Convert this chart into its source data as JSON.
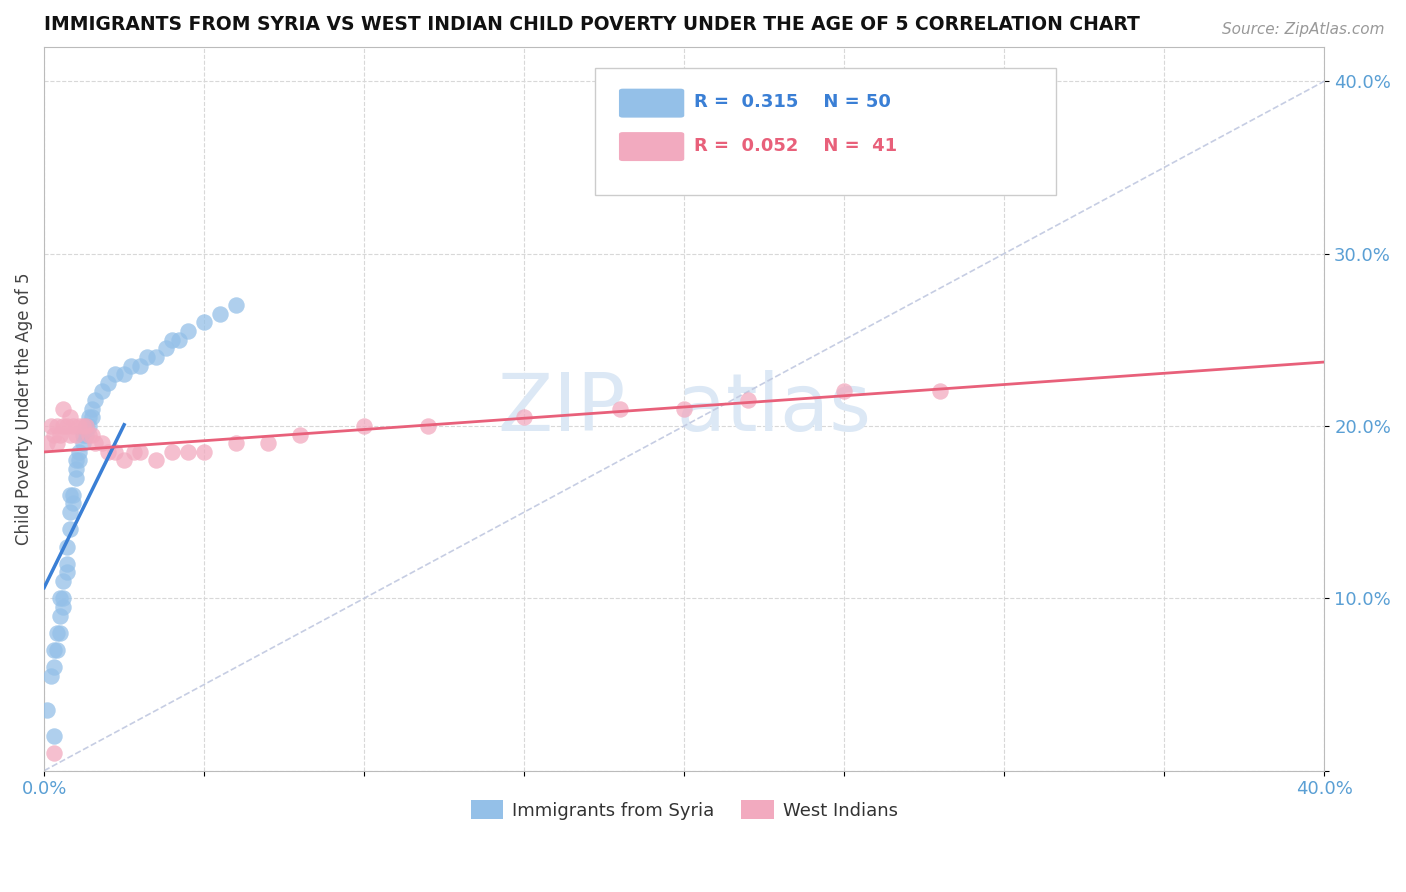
{
  "title": "IMMIGRANTS FROM SYRIA VS WEST INDIAN CHILD POVERTY UNDER THE AGE OF 5 CORRELATION CHART",
  "source": "Source: ZipAtlas.com",
  "ylabel": "Child Poverty Under the Age of 5",
  "xlim": [
    0.0,
    0.4
  ],
  "ylim": [
    0.0,
    0.42
  ],
  "legend_blue_label": "Immigrants from Syria",
  "legend_pink_label": "West Indians",
  "r_blue": 0.315,
  "n_blue": 50,
  "r_pink": 0.052,
  "n_pink": 41,
  "blue_color": "#94c0e8",
  "pink_color": "#f2aabf",
  "blue_line_color": "#3a7fd5",
  "pink_line_color": "#e8607a",
  "diag_color": "#c0c8e0",
  "watermark_color": "#dce8f5",
  "syria_x": [
    0.001,
    0.002,
    0.003,
    0.003,
    0.004,
    0.004,
    0.005,
    0.005,
    0.005,
    0.006,
    0.006,
    0.006,
    0.007,
    0.007,
    0.007,
    0.008,
    0.008,
    0.008,
    0.009,
    0.009,
    0.01,
    0.01,
    0.01,
    0.011,
    0.011,
    0.012,
    0.012,
    0.013,
    0.013,
    0.014,
    0.014,
    0.015,
    0.015,
    0.016,
    0.018,
    0.02,
    0.022,
    0.025,
    0.027,
    0.03,
    0.032,
    0.035,
    0.038,
    0.04,
    0.042,
    0.045,
    0.05,
    0.055,
    0.06,
    0.003
  ],
  "syria_y": [
    0.035,
    0.055,
    0.06,
    0.07,
    0.07,
    0.08,
    0.08,
    0.09,
    0.1,
    0.095,
    0.1,
    0.11,
    0.115,
    0.12,
    0.13,
    0.14,
    0.15,
    0.16,
    0.155,
    0.16,
    0.17,
    0.175,
    0.18,
    0.18,
    0.185,
    0.19,
    0.195,
    0.195,
    0.2,
    0.2,
    0.205,
    0.205,
    0.21,
    0.215,
    0.22,
    0.225,
    0.23,
    0.23,
    0.235,
    0.235,
    0.24,
    0.24,
    0.245,
    0.25,
    0.25,
    0.255,
    0.26,
    0.265,
    0.27,
    0.02
  ],
  "westindian_x": [
    0.001,
    0.002,
    0.003,
    0.004,
    0.004,
    0.005,
    0.006,
    0.006,
    0.007,
    0.008,
    0.008,
    0.009,
    0.01,
    0.011,
    0.012,
    0.013,
    0.014,
    0.015,
    0.016,
    0.018,
    0.02,
    0.022,
    0.025,
    0.028,
    0.03,
    0.035,
    0.04,
    0.045,
    0.05,
    0.06,
    0.07,
    0.08,
    0.1,
    0.12,
    0.15,
    0.18,
    0.2,
    0.22,
    0.25,
    0.28,
    0.003
  ],
  "westindian_y": [
    0.19,
    0.2,
    0.195,
    0.19,
    0.2,
    0.195,
    0.21,
    0.2,
    0.2,
    0.195,
    0.205,
    0.2,
    0.195,
    0.2,
    0.2,
    0.2,
    0.195,
    0.195,
    0.19,
    0.19,
    0.185,
    0.185,
    0.18,
    0.185,
    0.185,
    0.18,
    0.185,
    0.185,
    0.185,
    0.19,
    0.19,
    0.195,
    0.2,
    0.2,
    0.205,
    0.21,
    0.21,
    0.215,
    0.22,
    0.22,
    0.01
  ]
}
